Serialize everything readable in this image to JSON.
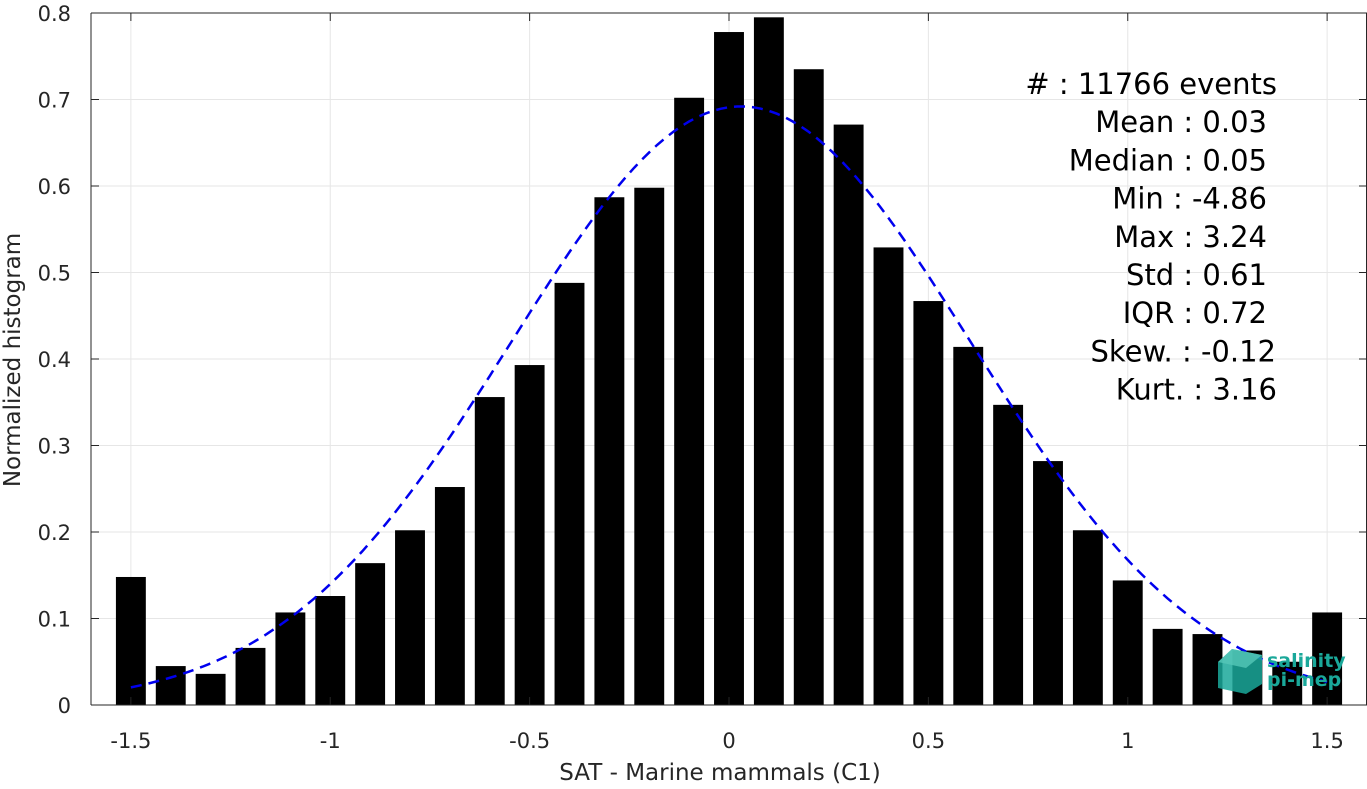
{
  "chart_data": {
    "type": "bar",
    "xlabel": "SAT - Marine mammals (C1)",
    "ylabel": "Normalized histogram",
    "xlim": [
      -1.6,
      1.6
    ],
    "ylim": [
      0,
      0.8
    ],
    "grid": true,
    "x_ticks": [
      -1.5,
      -1,
      -0.5,
      0,
      0.5,
      1,
      1.5
    ],
    "x_tick_labels": [
      "-1.5",
      "-1",
      "-0.5",
      "0",
      "0.5",
      "1",
      "1.5"
    ],
    "y_ticks": [
      0,
      0.1,
      0.2,
      0.3,
      0.4,
      0.5,
      0.6,
      0.7,
      0.8
    ],
    "y_tick_labels": [
      "0",
      "0.1",
      "0.2",
      "0.3",
      "0.4",
      "0.5",
      "0.6",
      "0.7",
      "0.8"
    ],
    "bar_color": "#000000",
    "bar_width": 0.075,
    "bars": {
      "x": [
        -1.5,
        -1.4,
        -1.3,
        -1.2,
        -1.1,
        -1.0,
        -0.9,
        -0.8,
        -0.7,
        -0.6,
        -0.5,
        -0.4,
        -0.3,
        -0.2,
        -0.1,
        0.0,
        0.1,
        0.2,
        0.3,
        0.4,
        0.5,
        0.6,
        0.7,
        0.8,
        0.9,
        1.0,
        1.1,
        1.2,
        1.3,
        1.4,
        1.5
      ],
      "values": [
        0.148,
        0.045,
        0.036,
        0.066,
        0.107,
        0.126,
        0.164,
        0.202,
        0.252,
        0.356,
        0.393,
        0.488,
        0.587,
        0.598,
        0.702,
        0.778,
        0.795,
        0.735,
        0.671,
        0.529,
        0.467,
        0.414,
        0.347,
        0.282,
        0.202,
        0.144,
        0.088,
        0.082,
        0.063,
        0.05,
        0.107
      ]
    },
    "fit_curve": {
      "style": "dashed",
      "color": "#0000ee",
      "mean": 0.03,
      "std": 0.576,
      "peak": 0.692,
      "x_range": [
        -1.5,
        1.5
      ]
    },
    "stats": [
      {
        "label": "#  : ",
        "value": "11766 events"
      },
      {
        "label": "Mean : ",
        "value": "0.03"
      },
      {
        "label": "Median : ",
        "value": "0.05"
      },
      {
        "label": "Min : ",
        "value": "-4.86"
      },
      {
        "label": "Max : ",
        "value": "3.24"
      },
      {
        "label": "Std : ",
        "value": "0.61"
      },
      {
        "label": "IQR : ",
        "value": "0.72"
      },
      {
        "label": "Skew. : ",
        "value": "-0.12"
      },
      {
        "label": "Kurt. : ",
        "value": "3.16"
      }
    ]
  },
  "logo": {
    "line1": "salinity",
    "line2": "pi-mep",
    "color": "#1aa89a"
  }
}
